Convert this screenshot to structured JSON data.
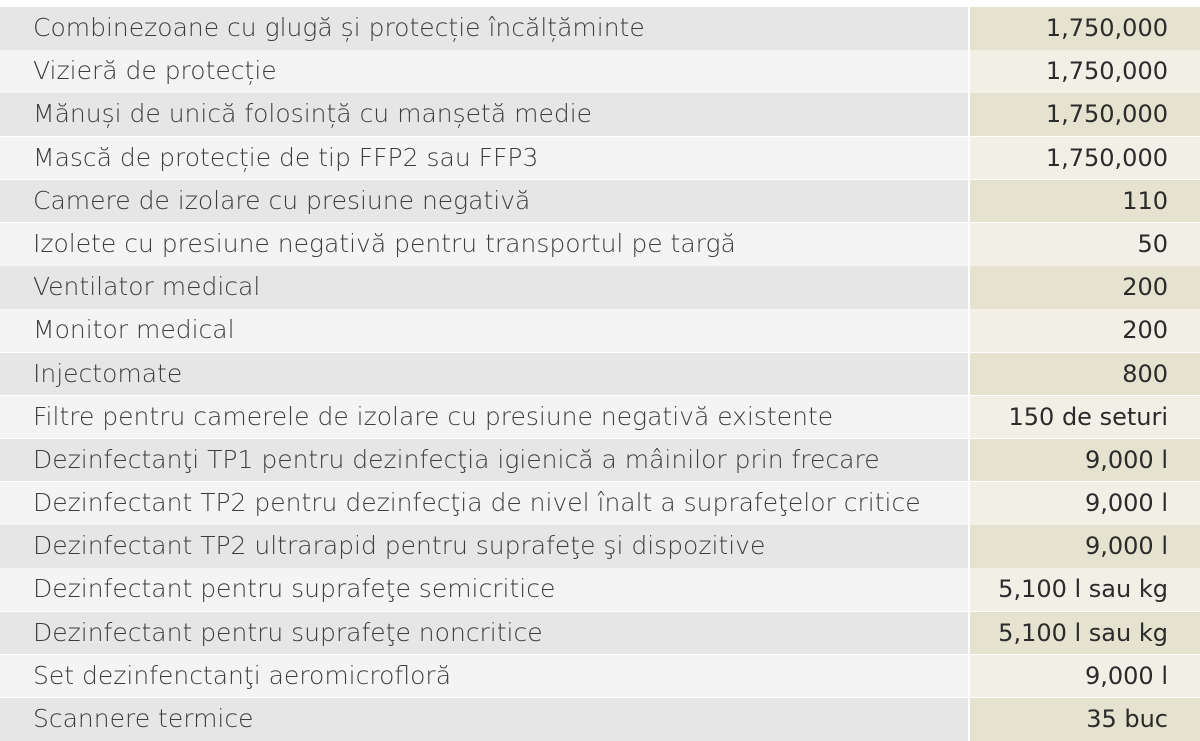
{
  "rows": [
    {
      "item": "Combinezoane cu glugă și protecție încălțăminte",
      "quantity": "1,750,000"
    },
    {
      "item": "Vizieră de protecție",
      "quantity": "1,750,000"
    },
    {
      "item": "Mănuși de unică folosință cu manșetă medie",
      "quantity": "1,750,000"
    },
    {
      "item": "Mască de protecție de tip FFP2 sau FFP3",
      "quantity": "1,750,000"
    },
    {
      "item": "Camere de izolare cu presiune negativă",
      "quantity": "110"
    },
    {
      "item": "Izolete cu presiune negativă pentru transportul pe targă",
      "quantity": "50"
    },
    {
      "item": "Ventilator medical",
      "quantity": "200"
    },
    {
      "item": "Monitor medical",
      "quantity": "200"
    },
    {
      "item": "Injectomate",
      "quantity": "800"
    },
    {
      "item": "Filtre pentru camerele de izolare cu presiune negativă existente",
      "quantity": "150 de seturi"
    },
    {
      "item": "Dezinfectanţi TP1 pentru dezinfecţia igienică a mâinilor prin frecare",
      "quantity": "9,000 l"
    },
    {
      "item": "Dezinfectant TP2 pentru dezinfecţia de nivel înalt a suprafeţelor critice",
      "quantity": "9,000 l"
    },
    {
      "item": "Dezinfectant TP2 ultrarapid pentru suprafeţe şi dispozitive",
      "quantity": "9,000 l"
    },
    {
      "item": "Dezinfectant pentru suprafeţe semicritice",
      "quantity": "5,100 l sau kg"
    },
    {
      "item": "Dezinfectant pentru suprafeţe noncritice",
      "quantity": "5,100 l sau kg"
    },
    {
      "item": "Set dezinfenctanţi aeromicrofloră",
      "quantity": "9,000 l"
    },
    {
      "item": "Scannere termice",
      "quantity": "35 buc"
    }
  ]
}
